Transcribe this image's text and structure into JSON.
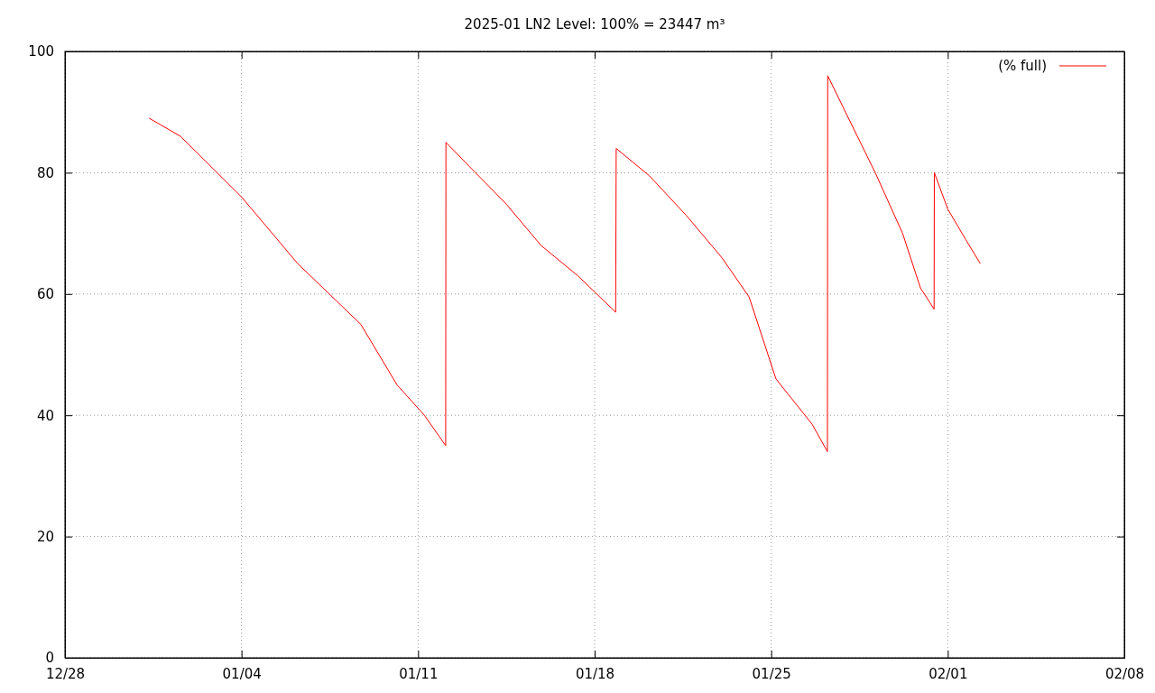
{
  "chart_data": {
    "type": "line",
    "title": "2025-01 LN2 Level: 100% = 23447 m³",
    "x": [
      "2024-12-31T08:00",
      "2025-01-01T14:00",
      "2025-01-04T00:00",
      "2025-01-06T05:30",
      "2025-01-08T17:30",
      "2025-01-10T04:00",
      "2025-01-11T06:00",
      "2025-01-12T02:15",
      "2025-01-12T02:30",
      "2025-01-13T01:00",
      "2025-01-14T11:00",
      "2025-01-15T21:00",
      "2025-01-17T08:00",
      "2025-01-18T20:00",
      "2025-01-18T20:30",
      "2025-01-20T04:00",
      "2025-01-21T15:00",
      "2025-01-23T01:00",
      "2025-01-24T03:00",
      "2025-01-25T04:30",
      "2025-01-26T15:00",
      "2025-01-27T05:30",
      "2025-01-27T05:45",
      "2025-01-28T01:30",
      "2025-01-29T03:00",
      "2025-01-30T05:00",
      "2025-01-30T22:00",
      "2025-01-31T11:00",
      "2025-01-31T11:15",
      "2025-02-01T00:00",
      "2025-02-01T17:00",
      "2025-02-02T07:00"
    ],
    "series": [
      {
        "name": "(% full)",
        "color": "#ff0000",
        "values": [
          89,
          86,
          76,
          65,
          55,
          45,
          40,
          35,
          85,
          81,
          75,
          68,
          63,
          57,
          84,
          79.5,
          73,
          66,
          59.5,
          46,
          38.5,
          34,
          96,
          89,
          80,
          70,
          61,
          57.5,
          80,
          74,
          69,
          65
        ]
      }
    ],
    "xlim": [
      "2024-12-28",
      "2025-02-08"
    ],
    "xticks": [
      {
        "value": "2024-12-28",
        "label": "12/28"
      },
      {
        "value": "2025-01-04",
        "label": "01/04"
      },
      {
        "value": "2025-01-11",
        "label": "01/11"
      },
      {
        "value": "2025-01-18",
        "label": "01/18"
      },
      {
        "value": "2025-01-25",
        "label": "01/25"
      },
      {
        "value": "2025-02-01",
        "label": "02/01"
      },
      {
        "value": "2025-02-08",
        "label": "02/08"
      }
    ],
    "ylim": [
      0,
      100
    ],
    "yticks": [
      0,
      20,
      40,
      60,
      80,
      100
    ],
    "grid": true,
    "legend": "top right",
    "line_style": "solid",
    "marker": "none"
  }
}
